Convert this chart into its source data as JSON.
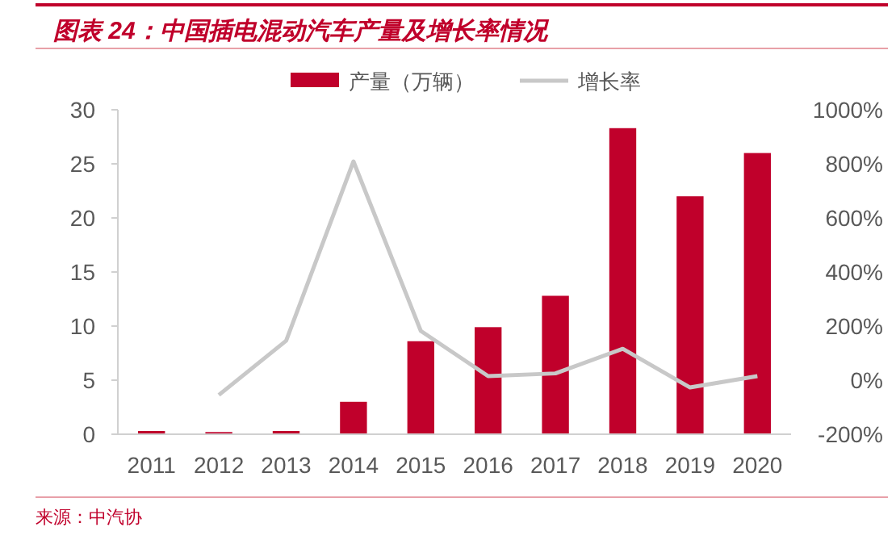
{
  "chart_data": {
    "type": "bar",
    "title": "图表 24：中国插电混动汽车产量及增长率情况",
    "categories": [
      "2011",
      "2012",
      "2013",
      "2014",
      "2015",
      "2016",
      "2017",
      "2018",
      "2019",
      "2020"
    ],
    "series": [
      {
        "name": "产量（万辆）",
        "color": "#c0002b",
        "values": [
          0.3,
          0.2,
          0.3,
          3.0,
          8.6,
          9.9,
          12.8,
          28.3,
          22.0,
          26.0
        ]
      },
      {
        "name": "增长率",
        "type": "line",
        "axis": "y2",
        "color": "#c8c8c8",
        "values": [
          null,
          -55,
          146,
          809,
          182,
          15,
          25,
          116,
          -27,
          15
        ]
      }
    ],
    "ylim": [
      0,
      30
    ],
    "yticks": [
      0,
      5,
      10,
      15,
      20,
      25,
      30
    ],
    "y2lim": [
      -200,
      1000
    ],
    "y2ticks": [
      {
        "value": -200,
        "label": "-200%"
      },
      {
        "value": 0,
        "label": "0%"
      },
      {
        "value": 200,
        "label": "200%"
      },
      {
        "value": 400,
        "label": "400%"
      },
      {
        "value": 600,
        "label": "600%"
      },
      {
        "value": 800,
        "label": "800%"
      },
      {
        "value": 1000,
        "label": "1000%"
      }
    ],
    "legend": "top",
    "grid": false,
    "annotations": [
      "来源：中汽协"
    ]
  }
}
